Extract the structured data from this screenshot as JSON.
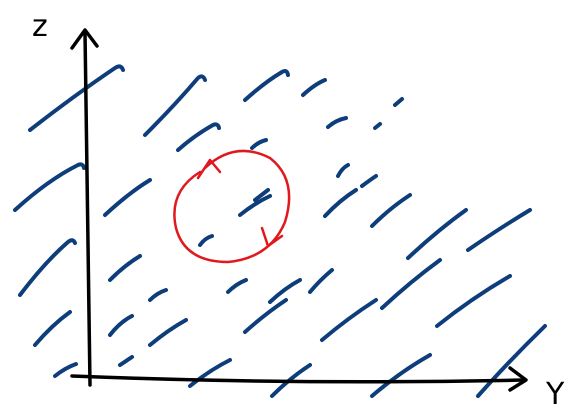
{
  "axes": {
    "vertical_label": "z",
    "horizontal_label": "Y"
  }
}
